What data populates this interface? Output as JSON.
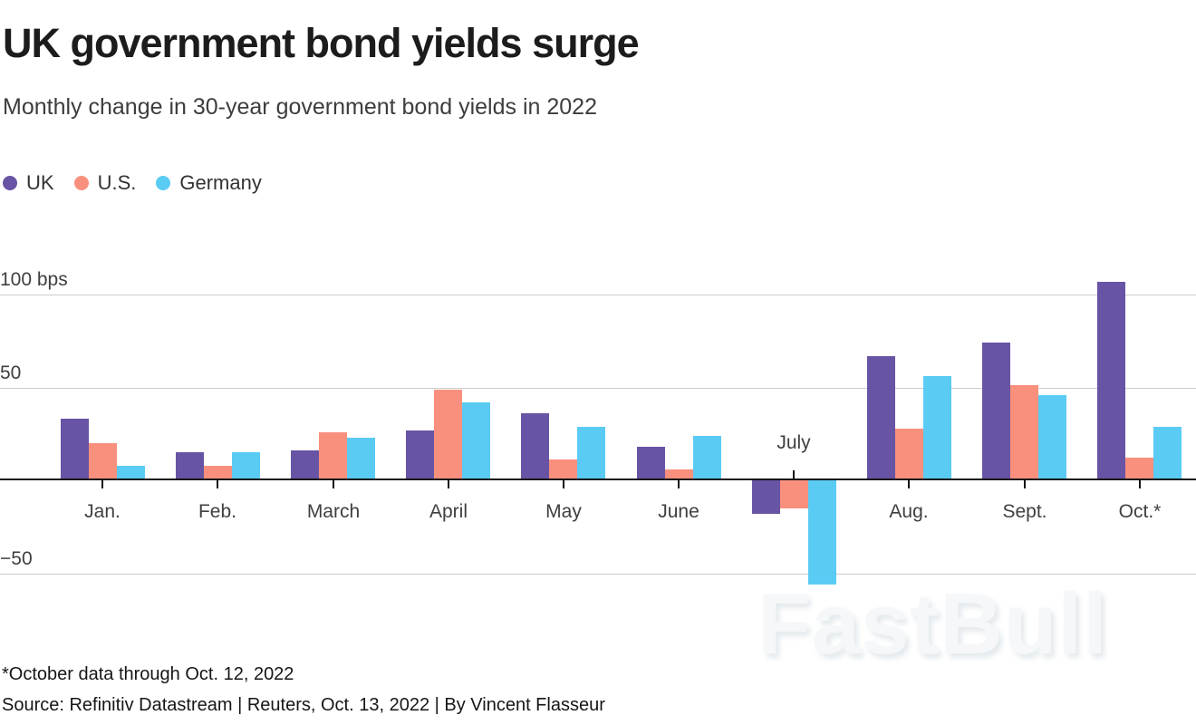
{
  "header": {
    "title": "UK government bond yields surge",
    "subtitle": "Monthly change in 30-year government bond yields in 2022"
  },
  "colors": {
    "uk": "#6854a4",
    "us": "#f9907d",
    "germany": "#5acbf3",
    "gridline": "#cbcbcb",
    "axis": "#141414"
  },
  "legend": {
    "items": [
      {
        "label": "UK",
        "color": "#6854a4"
      },
      {
        "label": "U.S.",
        "color": "#f9907d"
      },
      {
        "label": "Germany",
        "color": "#5acbf3"
      }
    ]
  },
  "chart_data": {
    "type": "bar",
    "title": "UK government bond yields surge",
    "subtitle": "Monthly change in 30-year government bond yields in 2022",
    "unit": "bps",
    "categories": [
      "Jan.",
      "Feb.",
      "March",
      "April",
      "May",
      "June",
      "July",
      "Aug.",
      "Sept.",
      "Oct.*"
    ],
    "series": [
      {
        "name": "UK",
        "color": "#6854a4",
        "values": [
          33,
          15,
          16,
          27,
          36,
          18,
          -18,
          67,
          74,
          107
        ]
      },
      {
        "name": "U.S.",
        "color": "#f9907d",
        "values": [
          20,
          8,
          26,
          49,
          11,
          6,
          -15,
          28,
          51,
          12
        ]
      },
      {
        "name": "Germany",
        "color": "#5acbf3",
        "values": [
          8,
          15,
          23,
          42,
          29,
          24,
          -56,
          56,
          46,
          29
        ]
      }
    ],
    "y_axis": {
      "ticks": [
        {
          "value": 100,
          "label": "100 bps"
        },
        {
          "value": 50,
          "label": "50"
        },
        {
          "value": -50,
          "label": "−50"
        }
      ],
      "ylim": [
        -70,
        115
      ],
      "grid": true,
      "zero_baseline": true
    },
    "legend_position": "top-left"
  },
  "watermark": "FastBull",
  "footer": {
    "footnote": "*October data through Oct. 12, 2022",
    "source": "Source: Refinitiv Datastream | Reuters, Oct. 13, 2022 | By Vincent Flasseur"
  }
}
